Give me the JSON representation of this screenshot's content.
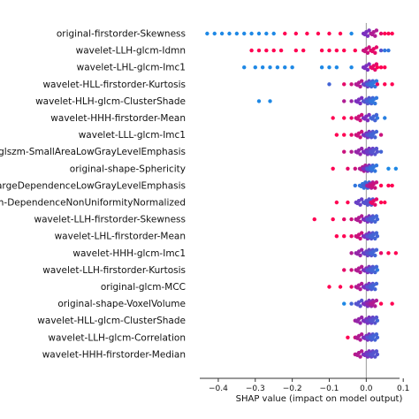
{
  "chart_data": {
    "type": "scatter",
    "subtype": "beeswarm",
    "title": "",
    "xlabel": "SHAP value (impact on model output)",
    "ylabel": "",
    "xlim": [
      -0.45,
      0.09
    ],
    "x_ticks": [
      -0.4,
      -0.3,
      -0.2,
      -0.1,
      0.0,
      0.1
    ],
    "x_tick_labels": [
      "−0.4",
      "−0.3",
      "−0.2",
      "−0.1",
      "0.0",
      "0.1"
    ],
    "zero_line": 0.0,
    "grid": false,
    "colors": {
      "low": "#1e88e5",
      "high": "#ff0052",
      "mid": "#7b2fbe",
      "zero_line": "#999999"
    },
    "features": [
      "original-firstorder-Skewness",
      "wavelet-LLH-glcm-Idmn",
      "wavelet-LHL-glcm-Imc1",
      "wavelet-HLL-firstorder-Kurtosis",
      "wavelet-HLH-glcm-ClusterShade",
      "wavelet-HHH-firstorder-Mean",
      "wavelet-LLL-glcm-Imc1",
      "glszm-SmallAreaLowGrayLevelEmphasis",
      "original-shape-Sphericity",
      "argeDependenceLowGrayLevelEmphasis",
      "n-DependenceNonUniformityNormalized",
      "wavelet-LLH-firstorder-Skewness",
      "wavelet-LHL-firstorder-Mean",
      "wavelet-HHH-glcm-Imc1",
      "wavelet-LLH-firstorder-Kurtosis",
      "original-glcm-MCC",
      "original-shape-VoxelVolume",
      "wavelet-HLL-glcm-ClusterShade",
      "wavelet-LLH-glcm-Correlation",
      "wavelet-HHH-firstorder-Median"
    ],
    "series": [
      {
        "feature": "original-firstorder-Skewness",
        "points": [
          [
            -0.43,
            0
          ],
          [
            -0.41,
            0
          ],
          [
            -0.39,
            0
          ],
          [
            -0.37,
            0
          ],
          [
            -0.35,
            0
          ],
          [
            -0.33,
            0
          ],
          [
            -0.31,
            0
          ],
          [
            -0.29,
            0
          ],
          [
            -0.27,
            0
          ],
          [
            -0.25,
            0
          ],
          [
            -0.22,
            1
          ],
          [
            -0.19,
            1
          ],
          [
            -0.16,
            1
          ],
          [
            -0.13,
            1
          ],
          [
            -0.1,
            1
          ],
          [
            -0.07,
            1
          ],
          [
            -0.04,
            0
          ],
          [
            0.0,
            0.5
          ],
          [
            0.02,
            0.7
          ],
          [
            0.04,
            0.9
          ],
          [
            0.05,
            1
          ],
          [
            0.06,
            1
          ],
          [
            0.07,
            1
          ]
        ]
      },
      {
        "feature": "wavelet-LLH-glcm-Idmn",
        "points": [
          [
            -0.31,
            1
          ],
          [
            -0.29,
            1
          ],
          [
            -0.27,
            1
          ],
          [
            -0.25,
            1
          ],
          [
            -0.23,
            1
          ],
          [
            -0.19,
            1
          ],
          [
            -0.17,
            1
          ],
          [
            -0.12,
            1
          ],
          [
            -0.1,
            1
          ],
          [
            -0.08,
            1
          ],
          [
            -0.06,
            1
          ],
          [
            -0.03,
            1
          ],
          [
            0.0,
            0.8
          ],
          [
            0.02,
            0.9
          ],
          [
            0.04,
            0.3
          ],
          [
            0.05,
            0.1
          ],
          [
            0.06,
            0.1
          ]
        ]
      },
      {
        "feature": "wavelet-LHL-glcm-Imc1",
        "points": [
          [
            -0.33,
            0
          ],
          [
            -0.3,
            0
          ],
          [
            -0.28,
            0
          ],
          [
            -0.26,
            0
          ],
          [
            -0.24,
            0
          ],
          [
            -0.22,
            0
          ],
          [
            -0.2,
            0
          ],
          [
            -0.12,
            0
          ],
          [
            -0.1,
            0
          ],
          [
            -0.08,
            0
          ],
          [
            -0.04,
            0
          ],
          [
            0.0,
            0.5
          ],
          [
            0.02,
            0.9
          ],
          [
            0.03,
            1
          ],
          [
            0.04,
            1
          ],
          [
            0.05,
            1
          ]
        ]
      },
      {
        "feature": "wavelet-HLL-firstorder-Kurtosis",
        "points": [
          [
            -0.1,
            0.2
          ],
          [
            -0.06,
            0.9
          ],
          [
            -0.04,
            0.8
          ],
          [
            -0.02,
            0.7
          ],
          [
            0.0,
            0.4
          ],
          [
            0.01,
            0.2
          ],
          [
            0.02,
            0.1
          ],
          [
            0.03,
            0.9
          ],
          [
            0.05,
            1
          ],
          [
            0.07,
            1
          ]
        ]
      },
      {
        "feature": "wavelet-HLH-glcm-ClusterShade",
        "points": [
          [
            -0.29,
            0
          ],
          [
            -0.26,
            0
          ],
          [
            -0.06,
            0.7
          ],
          [
            -0.04,
            0.6
          ],
          [
            -0.02,
            0.5
          ],
          [
            0.0,
            0.3
          ],
          [
            0.01,
            0.2
          ],
          [
            0.02,
            0.1
          ]
        ]
      },
      {
        "feature": "wavelet-HHH-firstorder-Mean",
        "points": [
          [
            -0.09,
            1
          ],
          [
            -0.06,
            1
          ],
          [
            -0.04,
            0.9
          ],
          [
            -0.02,
            0.8
          ],
          [
            0.0,
            0.5
          ],
          [
            0.02,
            0.2
          ],
          [
            0.03,
            0.1
          ],
          [
            0.05,
            0.05
          ]
        ]
      },
      {
        "feature": "wavelet-LLL-glcm-Imc1",
        "points": [
          [
            -0.08,
            1
          ],
          [
            -0.06,
            1
          ],
          [
            -0.04,
            0.9
          ],
          [
            -0.02,
            0.8
          ],
          [
            0.0,
            0.5
          ],
          [
            0.01,
            0.3
          ],
          [
            0.02,
            0.2
          ],
          [
            0.04,
            0.8
          ]
        ]
      },
      {
        "feature": "glszm-SmallAreaLowGrayLevelEmphasis",
        "points": [
          [
            -0.06,
            0.8
          ],
          [
            -0.04,
            0.7
          ],
          [
            -0.02,
            0.6
          ],
          [
            0.0,
            0.5
          ],
          [
            0.01,
            0.4
          ],
          [
            0.02,
            0.3
          ],
          [
            0.03,
            0.3
          ],
          [
            0.04,
            0.2
          ]
        ]
      },
      {
        "feature": "original-shape-Sphericity",
        "points": [
          [
            -0.09,
            1
          ],
          [
            -0.05,
            0.9
          ],
          [
            -0.03,
            0.8
          ],
          [
            -0.01,
            0.7
          ],
          [
            0.0,
            0.5
          ],
          [
            0.01,
            0.2
          ],
          [
            0.02,
            0.1
          ],
          [
            0.06,
            0
          ],
          [
            0.08,
            0
          ]
        ]
      },
      {
        "feature": "argeDependenceLowGrayLevelEmphasis",
        "points": [
          [
            -0.03,
            0.1
          ],
          [
            -0.01,
            0.1
          ],
          [
            0.0,
            0.2
          ],
          [
            0.01,
            0.7
          ],
          [
            0.02,
            0.8
          ],
          [
            0.04,
            1
          ],
          [
            0.06,
            1
          ],
          [
            0.07,
            1
          ]
        ]
      },
      {
        "feature": "n-DependenceNonUniformityNormalized",
        "points": [
          [
            -0.08,
            1
          ],
          [
            -0.05,
            1
          ],
          [
            -0.02,
            0.4
          ],
          [
            0.0,
            0.3
          ],
          [
            0.01,
            0.3
          ],
          [
            0.02,
            0.9
          ],
          [
            0.04,
            1
          ],
          [
            0.05,
            1
          ]
        ]
      },
      {
        "feature": "wavelet-LLH-firstorder-Skewness",
        "points": [
          [
            -0.14,
            1
          ],
          [
            -0.09,
            1
          ],
          [
            -0.06,
            0.9
          ],
          [
            -0.04,
            0.8
          ],
          [
            -0.02,
            0.7
          ],
          [
            0.0,
            0.5
          ],
          [
            0.01,
            0.3
          ],
          [
            0.02,
            0.2
          ],
          [
            0.03,
            0.2
          ]
        ]
      },
      {
        "feature": "wavelet-LHL-firstorder-Mean",
        "points": [
          [
            -0.08,
            1
          ],
          [
            -0.06,
            1
          ],
          [
            -0.04,
            0.9
          ],
          [
            -0.02,
            0.8
          ],
          [
            0.0,
            0.5
          ],
          [
            0.01,
            0.3
          ],
          [
            0.02,
            0.2
          ],
          [
            0.03,
            0.2
          ]
        ]
      },
      {
        "feature": "wavelet-HHH-glcm-Imc1",
        "points": [
          [
            -0.04,
            0.7
          ],
          [
            -0.02,
            0.6
          ],
          [
            0.0,
            0.4
          ],
          [
            0.01,
            0.3
          ],
          [
            0.02,
            0.2
          ],
          [
            0.04,
            0.9
          ],
          [
            0.06,
            1
          ],
          [
            0.08,
            1
          ]
        ]
      },
      {
        "feature": "wavelet-LLH-firstorder-Kurtosis",
        "points": [
          [
            -0.06,
            0.9
          ],
          [
            -0.04,
            0.8
          ],
          [
            -0.02,
            0.7
          ],
          [
            0.0,
            0.5
          ],
          [
            0.01,
            0.3
          ],
          [
            0.02,
            0.2
          ],
          [
            0.03,
            0.1
          ]
        ]
      },
      {
        "feature": "original-glcm-MCC",
        "points": [
          [
            -0.1,
            1
          ],
          [
            -0.07,
            1
          ],
          [
            -0.04,
            0.9
          ],
          [
            -0.02,
            0.7
          ],
          [
            0.0,
            0.5
          ],
          [
            0.01,
            0.3
          ],
          [
            0.02,
            0.2
          ]
        ]
      },
      {
        "feature": "original-shape-VoxelVolume",
        "points": [
          [
            -0.06,
            0
          ],
          [
            -0.04,
            0.2
          ],
          [
            -0.02,
            0.3
          ],
          [
            0.0,
            0.5
          ],
          [
            0.01,
            0.6
          ],
          [
            0.02,
            0.7
          ],
          [
            0.04,
            1
          ],
          [
            0.07,
            1
          ]
        ]
      },
      {
        "feature": "wavelet-HLL-glcm-ClusterShade",
        "points": [
          [
            -0.03,
            0.7
          ],
          [
            -0.02,
            0.6
          ],
          [
            0.0,
            0.5
          ],
          [
            0.01,
            0.4
          ],
          [
            0.02,
            0.3
          ],
          [
            0.03,
            0.2
          ]
        ]
      },
      {
        "feature": "wavelet-LLH-glcm-Correlation",
        "points": [
          [
            -0.05,
            1
          ],
          [
            -0.03,
            0.9
          ],
          [
            -0.02,
            0.7
          ],
          [
            0.0,
            0.5
          ],
          [
            0.01,
            0.3
          ],
          [
            0.02,
            0.2
          ],
          [
            0.03,
            0.2
          ]
        ]
      },
      {
        "feature": "wavelet-HHH-firstorder-Median",
        "points": [
          [
            -0.03,
            0.8
          ],
          [
            -0.02,
            0.7
          ],
          [
            0.0,
            0.5
          ],
          [
            0.01,
            0.4
          ],
          [
            0.02,
            0.3
          ],
          [
            0.03,
            0.3
          ]
        ]
      }
    ]
  }
}
